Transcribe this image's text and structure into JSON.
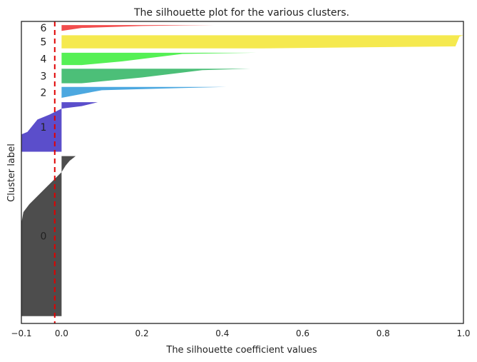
{
  "chart_data": {
    "type": "silhouette",
    "title": "The silhouette plot for the various clusters.",
    "xlabel": "The silhouette coefficient values",
    "ylabel": "Cluster label",
    "xlim": [
      -0.1,
      1.0
    ],
    "xticks": [
      -0.1,
      0.0,
      0.2,
      0.4,
      0.6,
      0.8,
      1.0
    ],
    "xtick_labels": [
      "−0.1",
      "0.0",
      "0.2",
      "0.4",
      "0.6",
      "0.8",
      "1.0"
    ],
    "average_silhouette_score": -0.017,
    "grid": false,
    "clusters": [
      {
        "label": "0",
        "color": "#4d4d4d",
        "y": [
          10,
          230
        ],
        "shape": [
          [
            0.035,
            0.0
          ],
          [
            0.02,
            0.03
          ],
          [
            0.01,
            0.06
          ],
          [
            0.0,
            0.1
          ],
          [
            -0.02,
            0.15
          ],
          [
            -0.04,
            0.2
          ],
          [
            -0.06,
            0.25
          ],
          [
            -0.08,
            0.3
          ],
          [
            -0.095,
            0.35
          ],
          [
            -0.1,
            0.42
          ],
          [
            -0.1,
            1.0
          ]
        ]
      },
      {
        "label": "1",
        "color": "#5b4ecb",
        "y": [
          236,
          304
        ],
        "shape": [
          [
            0.09,
            0.0
          ],
          [
            0.05,
            0.08
          ],
          [
            0.0,
            0.13
          ],
          [
            -0.03,
            0.25
          ],
          [
            -0.06,
            0.35
          ],
          [
            -0.085,
            0.6
          ],
          [
            -0.1,
            0.65
          ],
          [
            -0.1,
            1.0
          ]
        ]
      },
      {
        "label": "2",
        "color": "#4ca8e0",
        "y": [
          310,
          325
        ],
        "shape": [
          [
            0.41,
            0.0
          ],
          [
            0.3,
            0.1
          ],
          [
            0.1,
            0.3
          ],
          [
            0.0,
            1.0
          ],
          [
            -0.08,
            1.0
          ],
          [
            -0.08,
            1.0
          ]
        ]
      },
      {
        "label": "3",
        "color": "#4cbf78",
        "y": [
          330,
          350
        ],
        "shape": [
          [
            0.47,
            0.0
          ],
          [
            0.35,
            0.1
          ],
          [
            0.2,
            0.6
          ],
          [
            0.05,
            1.0
          ]
        ]
      },
      {
        "label": "4",
        "color": "#55f055",
        "y": [
          355,
          372
        ],
        "shape": [
          [
            0.485,
            0.0
          ],
          [
            0.3,
            0.1
          ],
          [
            0.15,
            0.7
          ],
          [
            0.05,
            1.0
          ]
        ]
      },
      {
        "label": "5",
        "color": "#f5e94f",
        "y": [
          378,
          396
        ],
        "shape": [
          [
            1.0,
            0.0
          ],
          [
            0.99,
            0.1
          ],
          [
            0.98,
            0.85
          ],
          [
            0.5,
            1.0
          ]
        ]
      },
      {
        "label": "6",
        "color": "#f24d4d",
        "y": [
          402,
          410
        ],
        "shape": [
          [
            0.38,
            0.0
          ],
          [
            0.2,
            0.15
          ],
          [
            0.05,
            0.5
          ],
          [
            0.0,
            1.0
          ]
        ]
      }
    ],
    "ylim": [
      0,
      415
    ]
  },
  "colors": {
    "axis": "#222222",
    "average_line": "#e00000",
    "text": "#222222"
  }
}
